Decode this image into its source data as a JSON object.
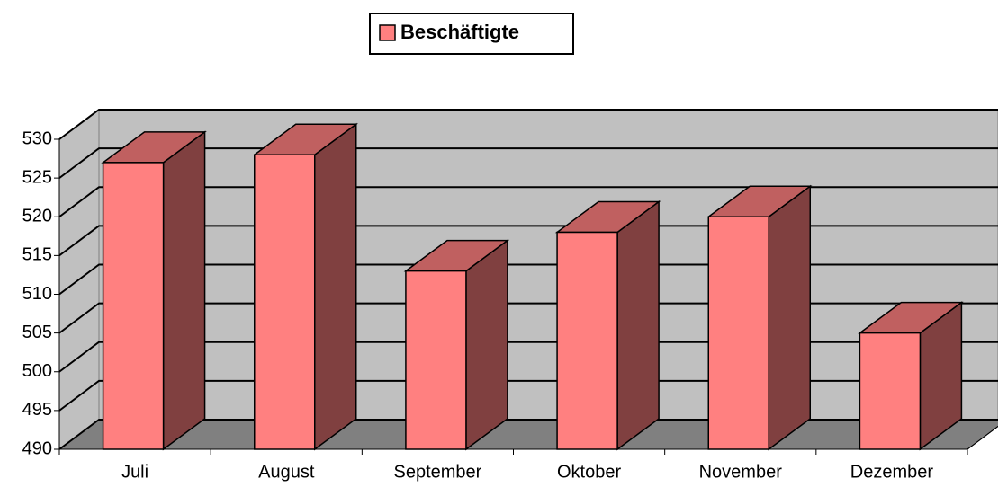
{
  "chart_data": {
    "type": "bar",
    "three_d": true,
    "categories": [
      "Juli",
      "August",
      "September",
      "Oktober",
      "November",
      "Dezember"
    ],
    "series": [
      {
        "name": "Beschäftigte",
        "color": "#ff8080",
        "values": [
          527,
          528,
          513,
          518,
          520,
          505
        ]
      }
    ],
    "ylim": [
      490,
      530
    ],
    "yticks": [
      490,
      495,
      500,
      505,
      510,
      515,
      520,
      525,
      530
    ],
    "grid": true,
    "legend": "top"
  }
}
